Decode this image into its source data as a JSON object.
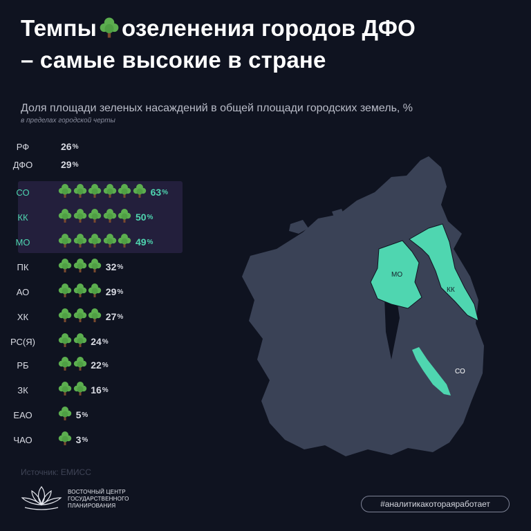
{
  "title": {
    "part1": "Темпы",
    "part2": "озеленения городов ДФО",
    "line2": "– самые высокие в стране",
    "icon": "tree-icon"
  },
  "colors": {
    "background": "#0f1320",
    "highlight_text": "#4fd6b0",
    "highlight_band": "#231f3c",
    "map_base": "#3a4256",
    "map_highlight": "#4fd6b0",
    "tree_crown": "#5cae4f",
    "tree_trunk": "#7a4a2c"
  },
  "chart_data": {
    "type": "bar",
    "title": "Доля площади зеленых насаждений в общей площади городских земель, %",
    "subtitle": "в пределах городской черты",
    "unit": "%",
    "mark": "tree-icon",
    "categories": [
      "РФ",
      "ДФО",
      "СО",
      "КК",
      "МО",
      "ПК",
      "АО",
      "ХК",
      "РС(Я)",
      "РБ",
      "ЗК",
      "ЕАО",
      "ЧАО"
    ],
    "values": [
      26,
      29,
      63,
      50,
      49,
      32,
      29,
      27,
      24,
      22,
      16,
      5,
      3
    ],
    "icon_counts": [
      0,
      0,
      6,
      5,
      5,
      3,
      3,
      3,
      2,
      2,
      2,
      1,
      1
    ],
    "highlighted": [
      "СО",
      "КК",
      "МО"
    ]
  },
  "map": {
    "labels": [
      "МО",
      "КК",
      "СО"
    ]
  },
  "source": "Источник: ЕМИСС",
  "org": {
    "line1": "ВОСТОЧНЫЙ ЦЕНТР",
    "line2": "ГОСУДАРСТВЕННОГО",
    "line3": "ПЛАНИРОВАНИЯ",
    "logo_icon": "lotus-logo-icon"
  },
  "hashtag": "#аналитикакотораяработает"
}
